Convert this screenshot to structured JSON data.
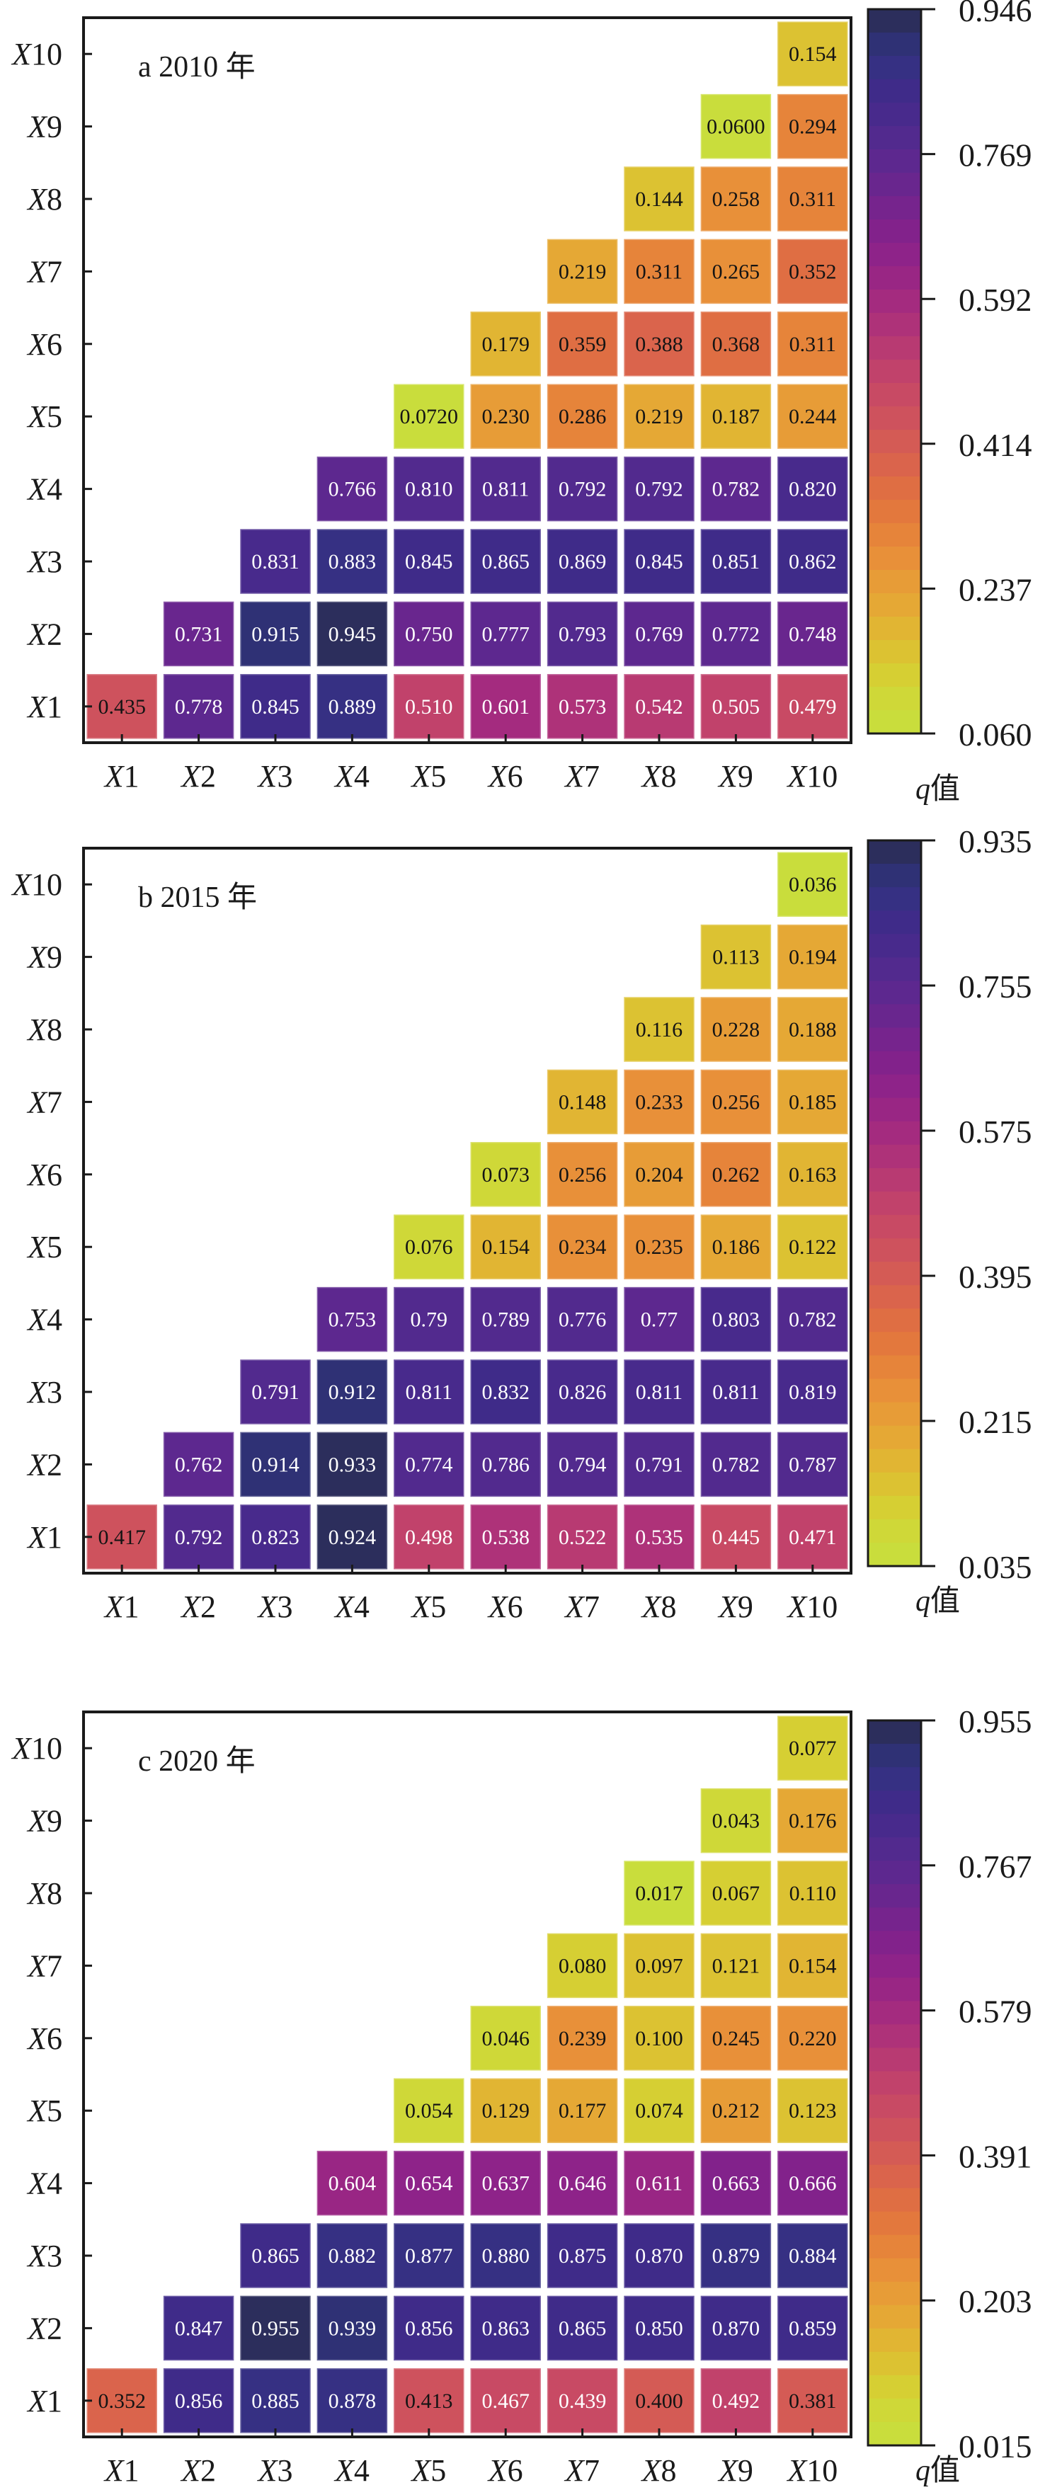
{
  "chart_data": [
    {
      "type": "heatmap",
      "title": "a 2010 年",
      "x_labels": [
        "X1",
        "X2",
        "X3",
        "X4",
        "X5",
        "X6",
        "X7",
        "X8",
        "X9",
        "X10"
      ],
      "y_labels": [
        "X1",
        "X2",
        "X3",
        "X4",
        "X5",
        "X6",
        "X7",
        "X8",
        "X9",
        "X10"
      ],
      "matrix_layout": "upper-triangle (row Xi, columns Xi..X10)",
      "rows": [
        {
          "y": "X1",
          "values": [
            "0.435",
            "0.778",
            "0.845",
            "0.889",
            "0.510",
            "0.601",
            "0.573",
            "0.542",
            "0.505",
            "0.479"
          ]
        },
        {
          "y": "X2",
          "values": [
            "0.731",
            "0.915",
            "0.945",
            "0.750",
            "0.777",
            "0.793",
            "0.769",
            "0.772",
            "0.748"
          ]
        },
        {
          "y": "X3",
          "values": [
            "0.831",
            "0.883",
            "0.845",
            "0.865",
            "0.869",
            "0.845",
            "0.851",
            "0.862"
          ]
        },
        {
          "y": "X4",
          "values": [
            "0.766",
            "0.810",
            "0.811",
            "0.792",
            "0.792",
            "0.782",
            "0.820"
          ]
        },
        {
          "y": "X5",
          "values": [
            "0.0720",
            "0.230",
            "0.286",
            "0.219",
            "0.187",
            "0.244"
          ]
        },
        {
          "y": "X6",
          "values": [
            "0.179",
            "0.359",
            "0.388",
            "0.368",
            "0.311"
          ]
        },
        {
          "y": "X7",
          "values": [
            "0.219",
            "0.311",
            "0.265",
            "0.352"
          ]
        },
        {
          "y": "X8",
          "values": [
            "0.144",
            "0.258",
            "0.311"
          ]
        },
        {
          "y": "X9",
          "values": [
            "0.0600",
            "0.294"
          ]
        },
        {
          "y": "X10",
          "values": [
            "0.154"
          ]
        }
      ],
      "colorbar": {
        "label_italic": "q",
        "label_rest": "值",
        "range": [
          0.06,
          0.946
        ],
        "ticks": [
          "0.946",
          "0.769",
          "0.592",
          "0.414",
          "0.237",
          "0.060"
        ]
      }
    },
    {
      "type": "heatmap",
      "title": "b 2015 年",
      "x_labels": [
        "X1",
        "X2",
        "X3",
        "X4",
        "X5",
        "X6",
        "X7",
        "X8",
        "X9",
        "X10"
      ],
      "y_labels": [
        "X1",
        "X2",
        "X3",
        "X4",
        "X5",
        "X6",
        "X7",
        "X8",
        "X9",
        "X10"
      ],
      "matrix_layout": "upper-triangle (row Xi, columns Xi..X10)",
      "rows": [
        {
          "y": "X1",
          "values": [
            "0.417",
            "0.792",
            "0.823",
            "0.924",
            "0.498",
            "0.538",
            "0.522",
            "0.535",
            "0.445",
            "0.471"
          ]
        },
        {
          "y": "X2",
          "values": [
            "0.762",
            "0.914",
            "0.933",
            "0.774",
            "0.786",
            "0.794",
            "0.791",
            "0.782",
            "0.787"
          ]
        },
        {
          "y": "X3",
          "values": [
            "0.791",
            "0.912",
            "0.811",
            "0.832",
            "0.826",
            "0.811",
            "0.811",
            "0.819"
          ]
        },
        {
          "y": "X4",
          "values": [
            "0.753",
            "0.79",
            "0.789",
            "0.776",
            "0.77",
            "0.803",
            "0.782"
          ]
        },
        {
          "y": "X5",
          "values": [
            "0.076",
            "0.154",
            "0.234",
            "0.235",
            "0.186",
            "0.122"
          ]
        },
        {
          "y": "X6",
          "values": [
            "0.073",
            "0.256",
            "0.204",
            "0.262",
            "0.163"
          ]
        },
        {
          "y": "X7",
          "values": [
            "0.148",
            "0.233",
            "0.256",
            "0.185"
          ]
        },
        {
          "y": "X8",
          "values": [
            "0.116",
            "0.228",
            "0.188"
          ]
        },
        {
          "y": "X9",
          "values": [
            "0.113",
            "0.194"
          ]
        },
        {
          "y": "X10",
          "values": [
            "0.036"
          ]
        }
      ],
      "colorbar": {
        "label_italic": "q",
        "label_rest": "值",
        "range": [
          0.035,
          0.935
        ],
        "ticks": [
          "0.935",
          "0.755",
          "0.575",
          "0.395",
          "0.215",
          "0.035"
        ]
      }
    },
    {
      "type": "heatmap",
      "title": "c 2020 年",
      "x_labels": [
        "X1",
        "X2",
        "X3",
        "X4",
        "X5",
        "X6",
        "X7",
        "X8",
        "X9",
        "X10"
      ],
      "y_labels": [
        "X1",
        "X2",
        "X3",
        "X4",
        "X5",
        "X6",
        "X7",
        "X8",
        "X9",
        "X10"
      ],
      "matrix_layout": "upper-triangle (row Xi, columns Xi..X10)",
      "rows": [
        {
          "y": "X1",
          "values": [
            "0.352",
            "0.856",
            "0.885",
            "0.878",
            "0.413",
            "0.467",
            "0.439",
            "0.400",
            "0.492",
            "0.381"
          ]
        },
        {
          "y": "X2",
          "values": [
            "0.847",
            "0.955",
            "0.939",
            "0.856",
            "0.863",
            "0.865",
            "0.850",
            "0.870",
            "0.859"
          ]
        },
        {
          "y": "X3",
          "values": [
            "0.865",
            "0.882",
            "0.877",
            "0.880",
            "0.875",
            "0.870",
            "0.879",
            "0.884"
          ]
        },
        {
          "y": "X4",
          "values": [
            "0.604",
            "0.654",
            "0.637",
            "0.646",
            "0.611",
            "0.663",
            "0.666"
          ]
        },
        {
          "y": "X5",
          "values": [
            "0.054",
            "0.129",
            "0.177",
            "0.074",
            "0.212",
            "0.123"
          ]
        },
        {
          "y": "X6",
          "values": [
            "0.046",
            "0.239",
            "0.100",
            "0.245",
            "0.220"
          ]
        },
        {
          "y": "X7",
          "values": [
            "0.080",
            "0.097",
            "0.121",
            "0.154"
          ]
        },
        {
          "y": "X8",
          "values": [
            "0.017",
            "0.067",
            "0.110"
          ]
        },
        {
          "y": "X9",
          "values": [
            "0.043",
            "0.176"
          ]
        },
        {
          "y": "X10",
          "values": [
            "0.077"
          ]
        }
      ],
      "colorbar": {
        "label_italic": "q",
        "label_rest": "值",
        "range": [
          0.015,
          0.955
        ],
        "ticks": [
          "0.955",
          "0.767",
          "0.579",
          "0.391",
          "0.203",
          "0.015"
        ]
      }
    }
  ],
  "colormap": [
    "#2c2e5c",
    "#2f3175",
    "#363083",
    "#3f2b89",
    "#482a8c",
    "#522a8e",
    "#5d288f",
    "#69268e",
    "#76248d",
    "#82228b",
    "#8e2389",
    "#992684",
    "#a42b7f",
    "#ae3279",
    "#b83a72",
    "#c1426b",
    "#c84a64",
    "#ce525d",
    "#d45b55",
    "#da644c",
    "#df6e43",
    "#e3783d",
    "#e6843a",
    "#e89039",
    "#e79c37",
    "#e5a835",
    "#e1b533",
    "#dcc232",
    "#d6cf33",
    "#cfd838",
    "#c9dd3c"
  ],
  "text_colors": {
    "dark": "#141414",
    "light": "#ffffff"
  }
}
